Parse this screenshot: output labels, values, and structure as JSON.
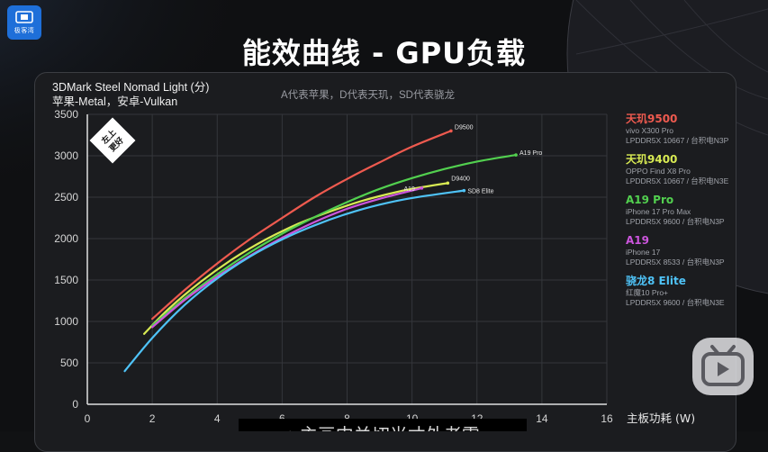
{
  "page_title": "能效曲线 - GPU负载",
  "channel_logo": {
    "text": "极客湾",
    "color": "#1e6fd9"
  },
  "note": "A代表苹果，D代表天玑，SD代表骁龙",
  "badge": {
    "text_line1": "左上",
    "text_line2": "更好"
  },
  "subtitle_text": "↓ 主画中关切光才外老雷",
  "play_icon": "bilibili-tv-icon",
  "chart_data": {
    "type": "line",
    "title": "",
    "ylabel_line1": "3DMark Steel Nomad Light (分)",
    "ylabel_line2": "苹果-Metal，安卓-Vulkan",
    "xlabel": "主板功耗 (W)",
    "xlim": [
      0,
      16
    ],
    "ylim": [
      0,
      3500
    ],
    "xticks": [
      0,
      2,
      4,
      6,
      8,
      10,
      12,
      14,
      16
    ],
    "yticks": [
      0,
      500,
      1000,
      1500,
      2000,
      2500,
      3000,
      3500
    ],
    "grid": true,
    "legend_position": "right",
    "series": [
      {
        "name": "天玑9500",
        "label": "D9500",
        "sub1": "vivo X300 Pro",
        "sub2": "LPDDR5X 10667 / 台积电N3P",
        "color": "#ee5a4f",
        "x": [
          2.0,
          3.0,
          4.0,
          5.0,
          6.0,
          7.0,
          8.0,
          9.0,
          10.0,
          11.2
        ],
        "y": [
          1030,
          1380,
          1700,
          1990,
          2250,
          2500,
          2720,
          2920,
          3110,
          3300
        ]
      },
      {
        "name": "天玑9400",
        "label": "D9400",
        "sub1": "OPPO Find X8 Pro",
        "sub2": "LPDDR5X 10667 / 台积电N3E",
        "color": "#d8ea53",
        "x": [
          1.75,
          2.5,
          3.5,
          4.5,
          5.5,
          6.5,
          7.5,
          8.5,
          9.5,
          10.0,
          11.1
        ],
        "y": [
          850,
          1150,
          1480,
          1760,
          1990,
          2180,
          2330,
          2460,
          2560,
          2600,
          2670
        ]
      },
      {
        "name": "A19 Pro",
        "label": "A19 Pro",
        "sub1": "iPhone 17 Pro Max",
        "sub2": "LPDDR5X 9600 / 台积电N3P",
        "color": "#52d04f",
        "x": [
          2.0,
          3.0,
          4.0,
          5.0,
          6.0,
          7.0,
          8.0,
          9.0,
          10.0,
          11.0,
          12.0,
          13.2
        ],
        "y": [
          950,
          1280,
          1570,
          1830,
          2060,
          2260,
          2440,
          2600,
          2730,
          2840,
          2930,
          3010
        ]
      },
      {
        "name": "A19",
        "label": "A19",
        "sub1": "iPhone 17",
        "sub2": "LPDDR5X 8533 / 台积电N3P",
        "color": "#cc55dd",
        "x": [
          2.0,
          3.0,
          4.0,
          5.0,
          6.0,
          7.0,
          8.0,
          9.0,
          10.3
        ],
        "y": [
          930,
          1260,
          1540,
          1790,
          2010,
          2200,
          2360,
          2480,
          2610
        ]
      },
      {
        "name": "骁龙8 Elite",
        "label": "SD8 Elite",
        "sub1": "红魔10 Pro+",
        "sub2": "LPDDR5X 9600 / 台积电N3E",
        "color": "#4fc3f7",
        "x": [
          1.15,
          2.0,
          3.0,
          4.0,
          5.0,
          6.0,
          7.0,
          8.0,
          9.0,
          10.0,
          11.6
        ],
        "y": [
          400,
          800,
          1200,
          1520,
          1780,
          1990,
          2160,
          2300,
          2410,
          2490,
          2580
        ]
      }
    ]
  }
}
